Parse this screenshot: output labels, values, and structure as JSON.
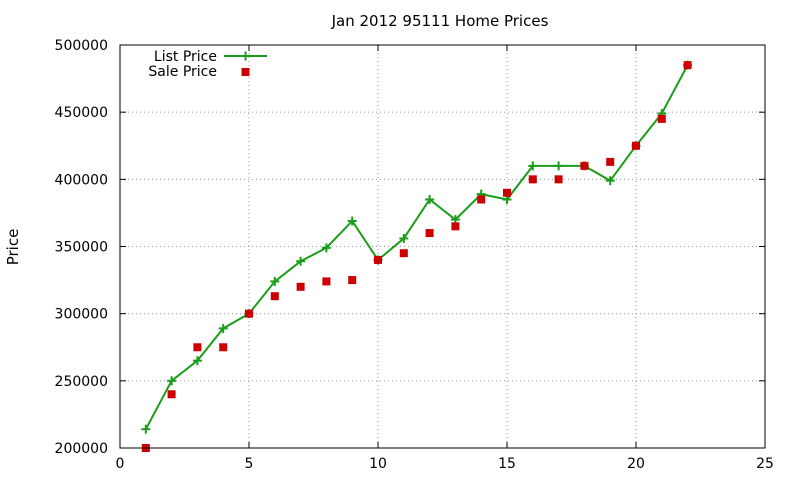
{
  "chart_data": {
    "type": "line",
    "title": "Jan 2012 95111 Home Prices",
    "xlabel": "",
    "ylabel": "Price",
    "xlim": [
      0,
      25
    ],
    "ylim": [
      200000,
      500000
    ],
    "xticks": [
      0,
      5,
      10,
      15,
      20,
      25
    ],
    "yticks": [
      200000,
      250000,
      300000,
      350000,
      400000,
      450000,
      500000
    ],
    "grid": true,
    "legend_position": "top-left",
    "series": [
      {
        "name": "List Price",
        "style": "line-with-plus-markers",
        "color": "#1a9e1a",
        "points": [
          [
            1,
            214000
          ],
          [
            2,
            250000
          ],
          [
            3,
            265000
          ],
          [
            4,
            289000
          ],
          [
            5,
            300000
          ],
          [
            6,
            324000
          ],
          [
            7,
            339000
          ],
          [
            8,
            349000
          ],
          [
            9,
            369000
          ],
          [
            10,
            340000
          ],
          [
            11,
            356000
          ],
          [
            12,
            385000
          ],
          [
            13,
            370000
          ],
          [
            14,
            389000
          ],
          [
            15,
            385000
          ],
          [
            16,
            410000
          ],
          [
            17,
            410000
          ],
          [
            18,
            410000
          ],
          [
            19,
            399000
          ],
          [
            20,
            425000
          ],
          [
            21,
            449000
          ],
          [
            22,
            485000
          ]
        ]
      },
      {
        "name": "Sale Price",
        "style": "square-markers",
        "color": "#cc0000",
        "points": [
          [
            1,
            200000
          ],
          [
            2,
            240000
          ],
          [
            3,
            275000
          ],
          [
            4,
            275000
          ],
          [
            5,
            300000
          ],
          [
            6,
            313000
          ],
          [
            7,
            320000
          ],
          [
            8,
            324000
          ],
          [
            9,
            325000
          ],
          [
            10,
            340000
          ],
          [
            11,
            345000
          ],
          [
            12,
            360000
          ],
          [
            13,
            365000
          ],
          [
            14,
            385000
          ],
          [
            15,
            390000
          ],
          [
            16,
            400000
          ],
          [
            17,
            400000
          ],
          [
            18,
            410000
          ],
          [
            19,
            413000
          ],
          [
            20,
            425000
          ],
          [
            21,
            445000
          ],
          [
            22,
            485000
          ]
        ]
      }
    ]
  }
}
